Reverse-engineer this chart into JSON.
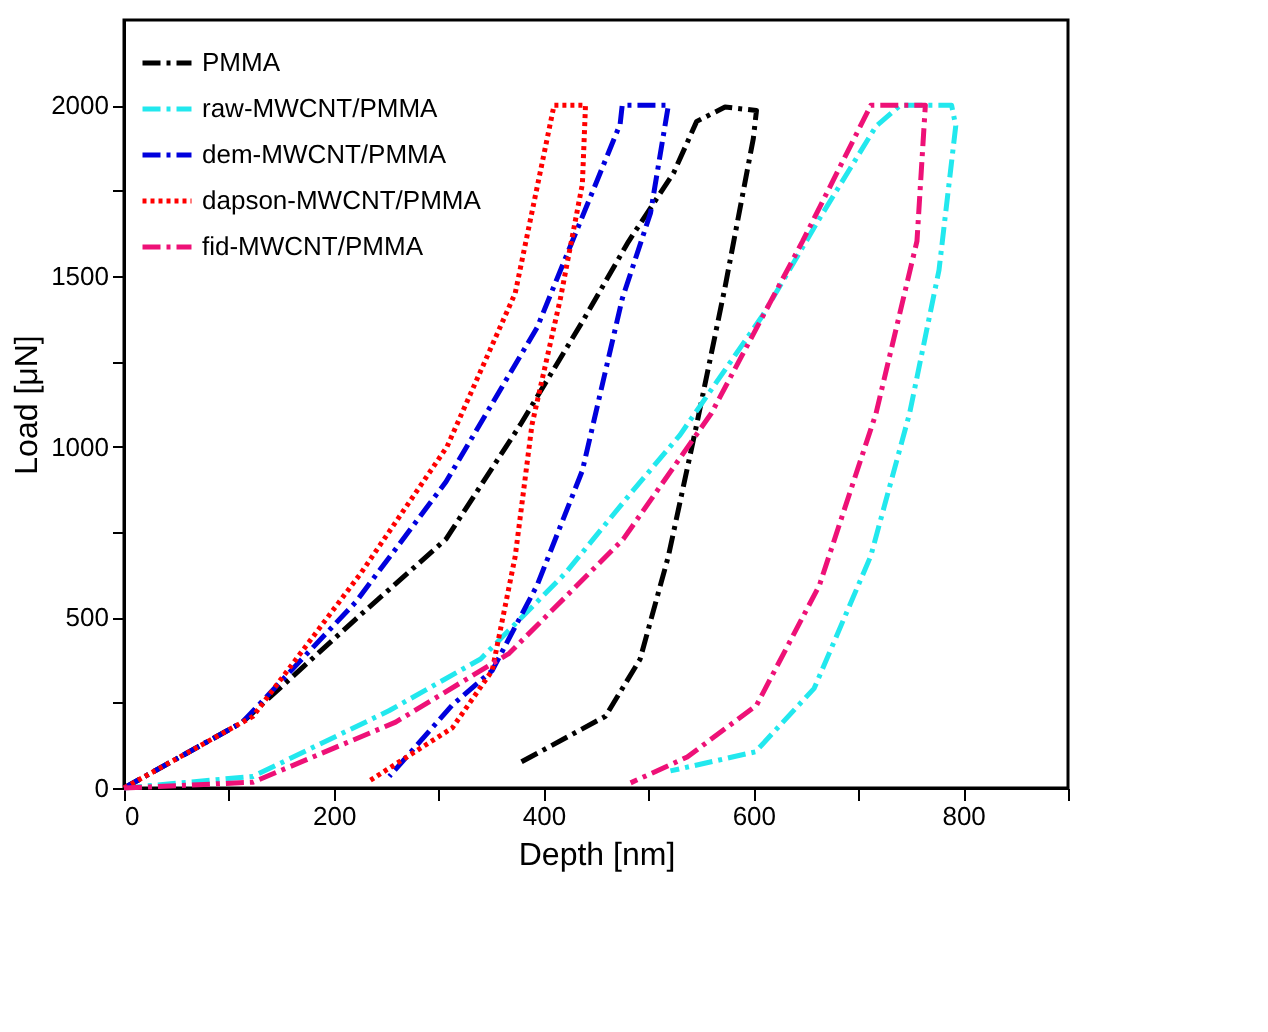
{
  "chart_data": {
    "type": "line",
    "xlabel": "Depth [nm]",
    "ylabel": "Load [μN]",
    "xlim": [
      0,
      900
    ],
    "ylim": [
      0,
      2250
    ],
    "xticks": [
      0,
      {
        "value": 100,
        "label": null
      },
      200,
      {
        "value": 300,
        "label": null
      },
      400,
      {
        "value": 500,
        "label": null
      },
      600,
      {
        "value": 700,
        "label": null
      },
      800,
      {
        "value": 900,
        "label": null
      }
    ],
    "yticks": [
      0,
      {
        "value": 250,
        "label": null
      },
      500,
      {
        "value": 750,
        "label": null
      },
      1000,
      {
        "value": 1250,
        "label": null
      },
      1500,
      {
        "value": 1750,
        "label": null
      },
      2000
    ],
    "grid": false,
    "legend": "top left",
    "marker": "none",
    "series": [
      {
        "name": "PMMA",
        "color": "#000000",
        "line_style": "dashed",
        "x": [
          0,
          113,
          221,
          307,
          378,
          437,
          481,
          524,
          546,
          573,
          603,
          600,
          573,
          546,
          519,
          492,
          459,
          378
        ],
        "values": [
          0,
          193,
          495,
          729,
          1065,
          1366,
          1601,
          1802,
          1953,
          1995,
          1985,
          1903,
          1467,
          1065,
          679,
          377,
          210,
          75
        ]
      },
      {
        "name": "raw-MWCNT/PMMA",
        "color": "#22e8ee",
        "line_style": "dashed",
        "x": [
          0,
          123,
          253,
          340,
          421,
          483,
          530,
          609,
          663,
          717,
          740,
          789,
          793,
          777,
          749,
          712,
          658,
          602,
          521
        ],
        "values": [
          0,
          34,
          227,
          378,
          630,
          863,
          1034,
          1385,
          1668,
          1939,
          2000,
          2000,
          1940,
          1517,
          1098,
          680,
          292,
          106,
          50
        ]
      },
      {
        "name": "dem-MWCNT/PMMA",
        "color": "#0000dd",
        "line_style": "dashed",
        "x": [
          0,
          113,
          221,
          307,
          394,
          473,
          475,
          519,
          502,
          475,
          437,
          394,
          351,
          313,
          253
        ],
        "values": [
          0,
          193,
          545,
          897,
          1350,
          1945,
          2000,
          2000,
          1685,
          1433,
          930,
          595,
          344,
          243,
          34
        ]
      },
      {
        "name": "dapson-MWCNT/PMMA",
        "color": "#ff0000",
        "line_style": "dotted",
        "x": [
          0,
          123,
          226,
          308,
          373,
          410,
          440,
          437,
          416,
          389,
          373,
          351,
          313,
          232
        ],
        "values": [
          0,
          210,
          630,
          1000,
          1450,
          2000,
          2000,
          1769,
          1433,
          1065,
          679,
          344,
          176,
          17
        ]
      },
      {
        "name": "fid-MWCNT/PMMA",
        "color": "#ee1177",
        "line_style": "dashed",
        "x": [
          0,
          123,
          259,
          367,
          476,
          560,
          647,
          712,
          764,
          756,
          717,
          663,
          603,
          537,
          483
        ],
        "values": [
          0,
          17,
          193,
          394,
          729,
          1098,
          1602,
          2000,
          2000,
          1602,
          1098,
          594,
          242,
          91,
          15
        ]
      }
    ]
  }
}
